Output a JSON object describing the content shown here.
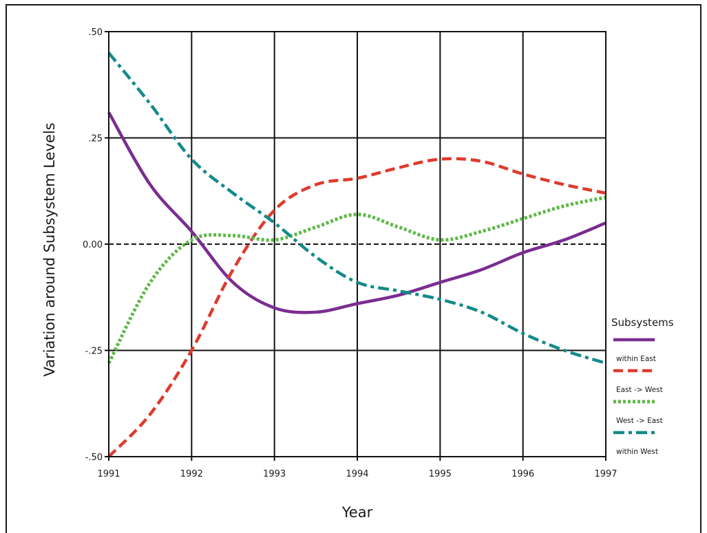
{
  "chart_data": {
    "type": "line",
    "title": "",
    "xlabel": "Year",
    "ylabel": "Variation around Subsystem Levels",
    "xlim": [
      1991,
      1997
    ],
    "ylim": [
      -0.5,
      0.5
    ],
    "x_ticks": [
      "1991",
      "1992",
      "1993",
      "1994",
      "1995",
      "1996",
      "1997"
    ],
    "y_ticks": [
      {
        "value": 0.5,
        "label": ".50"
      },
      {
        "value": 0.25,
        "label": ".25"
      },
      {
        "value": 0.0,
        "label": "0.00"
      },
      {
        "value": -0.25,
        "label": "-.25"
      },
      {
        "value": -0.5,
        "label": "-.50"
      }
    ],
    "grid": true,
    "reference_line": {
      "y": 0.0,
      "style": "dashed"
    },
    "legend": {
      "title": "Subsystems",
      "position": "right"
    },
    "series": [
      {
        "name": "within East",
        "color": "#7a2d91",
        "style": "solid",
        "x": [
          1991,
          1991.5,
          1992,
          1992.5,
          1993,
          1993.5,
          1994,
          1994.5,
          1995,
          1995.5,
          1996,
          1996.5,
          1997
        ],
        "y": [
          0.31,
          0.14,
          0.03,
          -0.09,
          -0.15,
          -0.16,
          -0.14,
          -0.12,
          -0.09,
          -0.06,
          -0.02,
          0.01,
          0.05
        ]
      },
      {
        "name": "East -> West",
        "color": "#de3a2e",
        "style": "dashed",
        "x": [
          1991,
          1991.5,
          1992,
          1992.5,
          1993,
          1993.5,
          1994,
          1994.5,
          1995,
          1995.5,
          1996,
          1996.5,
          1997
        ],
        "y": [
          -0.5,
          -0.4,
          -0.25,
          -0.06,
          0.08,
          0.14,
          0.155,
          0.18,
          0.2,
          0.195,
          0.165,
          0.14,
          0.12
        ]
      },
      {
        "name": "West -> East",
        "color": "#5fb84a",
        "style": "dotted",
        "x": [
          1991,
          1991.5,
          1992,
          1992.5,
          1993,
          1993.5,
          1994,
          1994.5,
          1995,
          1995.5,
          1996,
          1996.5,
          1997
        ],
        "y": [
          -0.28,
          -0.09,
          0.01,
          0.02,
          0.01,
          0.04,
          0.07,
          0.04,
          0.01,
          0.03,
          0.06,
          0.09,
          0.11
        ]
      },
      {
        "name": "within West",
        "color": "#138a8a",
        "style": "dashdot",
        "x": [
          1991,
          1991.5,
          1992,
          1992.5,
          1993,
          1993.5,
          1994,
          1994.5,
          1995,
          1995.5,
          1996,
          1996.5,
          1997
        ],
        "y": [
          0.45,
          0.33,
          0.2,
          0.12,
          0.05,
          -0.03,
          -0.09,
          -0.11,
          -0.13,
          -0.16,
          -0.21,
          -0.25,
          -0.28
        ]
      }
    ]
  }
}
